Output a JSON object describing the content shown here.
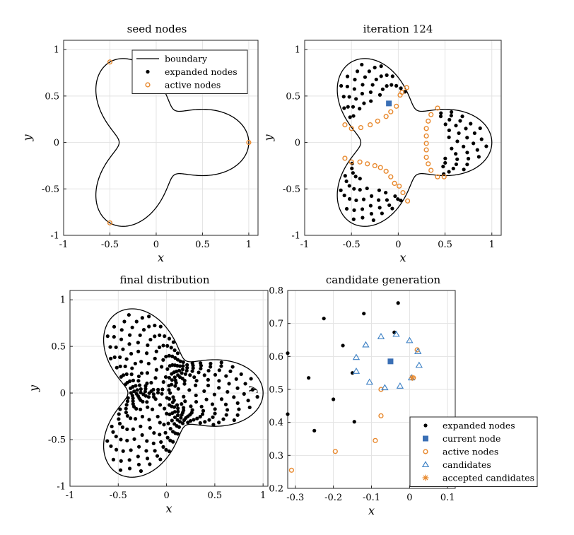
{
  "colors": {
    "expanded": "#000000",
    "current": "#3a6fb5",
    "active": "#e8892e",
    "candidate": "#3a7fc4",
    "accepted": "#e8892e",
    "grid": "#e3e3e3",
    "boundary": "#000000"
  },
  "chart_data": [
    {
      "id": "seed",
      "type": "scatter",
      "title": "seed nodes",
      "xlabel": "x",
      "ylabel": "y",
      "xlim": [
        -1,
        1.1
      ],
      "ylim": [
        -1,
        1.1
      ],
      "xticks": [
        -1,
        -0.5,
        0,
        0.5,
        1
      ],
      "xtick_labels": [
        "-1",
        "-0.5",
        "0",
        "0.5",
        "1"
      ],
      "yticks": [
        -1,
        -0.5,
        0,
        0.5,
        1
      ],
      "ytick_labels": [
        "-1",
        "-0.5",
        "0",
        "0.5",
        "1"
      ],
      "grid": true,
      "boundary": "r(t) = 0.7 + 0.3*cos(3t) closed curve",
      "series": [
        {
          "name": "boundary",
          "kind": "boundary"
        },
        {
          "name": "expanded nodes",
          "kind": "expanded",
          "points": []
        },
        {
          "name": "active nodes",
          "kind": "active",
          "points": [
            [
              1,
              0
            ],
            [
              -0.5,
              0.866
            ],
            [
              -0.5,
              -0.866
            ]
          ]
        }
      ],
      "legend": {
        "position": "top-right",
        "entries": [
          "boundary",
          "expanded nodes",
          "active nodes"
        ]
      }
    },
    {
      "id": "iter",
      "type": "scatter",
      "title": "iteration 124",
      "xlabel": "x",
      "ylabel": "y",
      "xlim": [
        -1,
        1.1
      ],
      "ylim": [
        -1,
        1.1
      ],
      "xticks": [
        -1,
        -0.5,
        0,
        0.5,
        1
      ],
      "xtick_labels": [
        "-1",
        "-0.5",
        "0",
        "0.5",
        "1"
      ],
      "yticks": [
        -1,
        -0.5,
        0,
        0.5,
        1
      ],
      "ytick_labels": [
        "-1",
        "-0.5",
        "0",
        "0.5",
        "1"
      ],
      "grid": true,
      "partial_fill_radius": 0.53,
      "series": [
        {
          "name": "boundary",
          "kind": "boundary"
        },
        {
          "name": "expanded nodes",
          "kind": "expanded",
          "points": "approximately 260 nodes filling the three lobes beyond radius ~0.53"
        },
        {
          "name": "current node",
          "kind": "current",
          "points": [
            [
              -0.1,
              0.42
            ]
          ]
        },
        {
          "name": "active nodes",
          "kind": "active",
          "points": [
            [
              -0.57,
              0.19
            ],
            [
              -0.5,
              0.15
            ],
            [
              -0.4,
              0.16
            ],
            [
              -0.3,
              0.19
            ],
            [
              -0.22,
              0.23
            ],
            [
              -0.13,
              0.28
            ],
            [
              -0.08,
              0.33
            ],
            [
              -0.02,
              0.39
            ],
            [
              0.02,
              0.51
            ],
            [
              0.04,
              0.54
            ],
            [
              0.09,
              0.59
            ],
            [
              0.42,
              0.37
            ],
            [
              0.35,
              0.3
            ],
            [
              0.32,
              0.23
            ],
            [
              0.3,
              0.15
            ],
            [
              0.3,
              0.07
            ],
            [
              0.3,
              -0.01
            ],
            [
              0.3,
              -0.08
            ],
            [
              0.3,
              -0.16
            ],
            [
              0.32,
              -0.23
            ],
            [
              0.35,
              -0.3
            ],
            [
              0.42,
              -0.37
            ],
            [
              0.49,
              -0.37
            ],
            [
              -0.57,
              -0.17
            ],
            [
              -0.5,
              -0.21
            ],
            [
              -0.41,
              -0.21
            ],
            [
              -0.33,
              -0.23
            ],
            [
              -0.25,
              -0.25
            ],
            [
              -0.19,
              -0.27
            ],
            [
              -0.13,
              -0.31
            ],
            [
              -0.08,
              -0.37
            ],
            [
              -0.04,
              -0.44
            ],
            [
              0.01,
              -0.47
            ],
            [
              0.05,
              -0.54
            ],
            [
              0.1,
              -0.63
            ]
          ]
        }
      ]
    },
    {
      "id": "final",
      "type": "scatter",
      "title": "final distribution",
      "xlabel": "x",
      "ylabel": "y",
      "xlim": [
        -1,
        1.05
      ],
      "ylim": [
        -1,
        1.1
      ],
      "xticks": [
        -1,
        -0.5,
        0,
        0.5,
        1
      ],
      "xtick_labels": [
        "-1",
        "-0.5",
        "0",
        "0.5",
        "1"
      ],
      "yticks": [
        -1,
        -0.5,
        0,
        0.5,
        1
      ],
      "ytick_labels": [
        "-1",
        "-0.5",
        "0",
        "0.5",
        "1"
      ],
      "grid": true,
      "series": [
        {
          "name": "boundary",
          "kind": "boundary"
        },
        {
          "name": "expanded nodes",
          "kind": "expanded",
          "points": "approximately 330 nodes filling the whole three-lobed domain"
        }
      ]
    },
    {
      "id": "cand",
      "type": "scatter",
      "title": "candidate generation",
      "xlabel": "x",
      "ylabel": "y",
      "xlim": [
        -0.32,
        0.12
      ],
      "ylim": [
        0.2,
        0.8
      ],
      "xticks": [
        -0.3,
        -0.2,
        -0.1,
        0,
        0.1
      ],
      "xtick_labels": [
        "-0.3",
        "-0.2",
        "-0.1",
        "0",
        "0.1"
      ],
      "yticks": [
        0.2,
        0.3,
        0.4,
        0.5,
        0.6,
        0.7,
        0.8
      ],
      "ytick_labels": [
        "0.2",
        "0.3",
        "0.4",
        "0.5",
        "0.6",
        "0.7",
        "0.8"
      ],
      "grid": true,
      "series": [
        {
          "name": "expanded nodes",
          "kind": "expanded",
          "points": [
            [
              -0.32,
              0.61
            ],
            [
              -0.265,
              0.535
            ],
            [
              -0.225,
              0.715
            ],
            [
              -0.175,
              0.633
            ],
            [
              -0.12,
              0.73
            ],
            [
              -0.15,
              0.55
            ],
            [
              -0.145,
              0.402
            ],
            [
              -0.2,
              0.47
            ],
            [
              -0.25,
              0.375
            ],
            [
              -0.32,
              0.425
            ],
            [
              -0.04,
              0.673
            ],
            [
              -0.03,
              0.762
            ]
          ]
        },
        {
          "name": "current node",
          "kind": "current",
          "points": [
            [
              -0.05,
              0.585
            ]
          ]
        },
        {
          "name": "active nodes",
          "kind": "active",
          "points": [
            [
              -0.31,
              0.255
            ],
            [
              -0.195,
              0.312
            ],
            [
              -0.09,
              0.345
            ],
            [
              -0.075,
              0.42
            ],
            [
              -0.075,
              0.5
            ],
            [
              0.01,
              0.535
            ],
            [
              0.02,
              0.62
            ]
          ]
        },
        {
          "name": "candidates",
          "kind": "candidate",
          "points": [
            [
              -0.035,
              0.667
            ],
            [
              -0.075,
              0.66
            ],
            [
              -0.115,
              0.635
            ],
            [
              -0.14,
              0.597
            ],
            [
              -0.14,
              0.555
            ],
            [
              -0.105,
              0.522
            ],
            [
              -0.065,
              0.505
            ],
            [
              -0.025,
              0.51
            ],
            [
              0.005,
              0.535
            ],
            [
              0.025,
              0.573
            ],
            [
              0.022,
              0.615
            ],
            [
              0.0,
              0.648
            ]
          ]
        },
        {
          "name": "accepted candidates",
          "kind": "accepted",
          "points": [
            [
              0.007,
              0.535
            ]
          ]
        }
      ],
      "legend": {
        "position": "bottom-right",
        "entries": [
          "expanded nodes",
          "current node",
          "active nodes",
          "candidates",
          "accepted candidates"
        ]
      }
    }
  ]
}
